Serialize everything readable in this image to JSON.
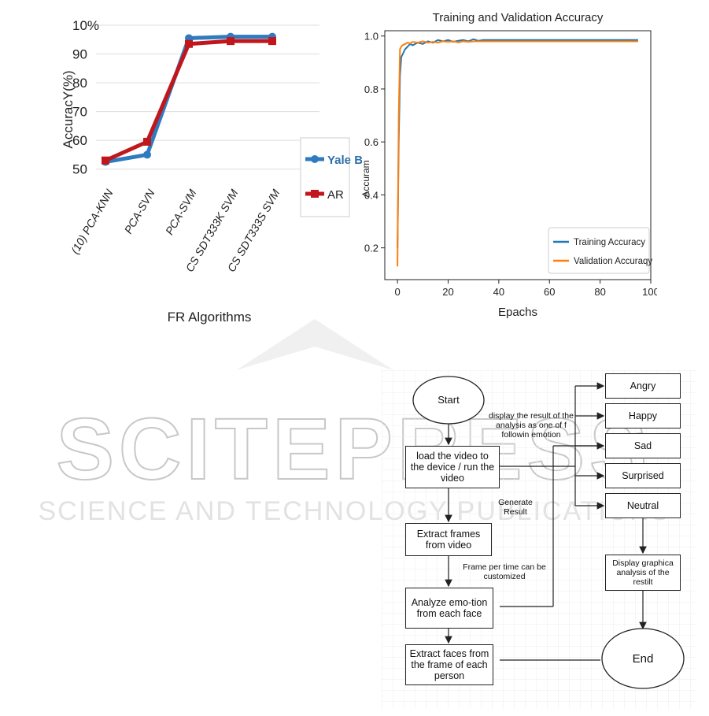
{
  "watermark": {
    "logo_text": "SCITEPRESS",
    "sub_text": "SCIENCE AND TECHNOLOGY PUBLICATIONS"
  },
  "chart_data": [
    {
      "type": "line",
      "title": "",
      "xlabel": "FR Algorithms",
      "ylabel": "AccuracY(%)",
      "categories": [
        "(10) PCA-KNN",
        "PCA-SVN",
        "PCA-SVM",
        "CS SDT333K SVM",
        "CS SDT333S SVM"
      ],
      "y_ticks": [
        "10%",
        "90",
        "80",
        "70",
        "60",
        "50"
      ],
      "ylim": [
        48,
        100
      ],
      "grid": true,
      "legend": "right",
      "series": [
        {
          "name": "Yale B",
          "color": "#2f7bbf",
          "values": [
            52.5,
            55,
            95.5,
            96,
            96
          ]
        },
        {
          "name": "AR",
          "color": "#c0161c",
          "values": [
            53,
            59.5,
            93.5,
            94.5,
            94.5
          ]
        }
      ]
    },
    {
      "type": "line",
      "title": "Training and Validation Accuracy",
      "xlabel": "Epachs",
      "ylabel": "Accuram",
      "x_ticks": [
        "0",
        "20",
        "40",
        "60",
        "80",
        "100"
      ],
      "y_ticks": [
        "0.2",
        "0.4",
        "0.6",
        "0.8",
        "1.0"
      ],
      "xlim": [
        -5,
        100
      ],
      "ylim": [
        0.08,
        1.02
      ],
      "grid": false,
      "legend": "bottom-right",
      "series": [
        {
          "name": "Training Accuracy",
          "color": "#1f77b4",
          "x": [
            0,
            0.5,
            1,
            1.5,
            2,
            3,
            4,
            5,
            6,
            8,
            10,
            12,
            14,
            16,
            18,
            20,
            22,
            24,
            26,
            28,
            30,
            32,
            34,
            36,
            40,
            50,
            60,
            70,
            80,
            90,
            95
          ],
          "y": [
            0.2,
            0.6,
            0.85,
            0.92,
            0.93,
            0.95,
            0.96,
            0.97,
            0.965,
            0.975,
            0.97,
            0.98,
            0.975,
            0.985,
            0.98,
            0.985,
            0.978,
            0.982,
            0.985,
            0.98,
            0.988,
            0.982,
            0.985,
            0.985,
            0.985,
            0.985,
            0.985,
            0.985,
            0.985,
            0.985,
            0.985
          ]
        },
        {
          "name": "Validation Accuraqy",
          "color": "#ff7f0e",
          "x": [
            0,
            0.5,
            1,
            1.5,
            2,
            3,
            4,
            5,
            6,
            8,
            10,
            12,
            14,
            16,
            18,
            20,
            22,
            24,
            26,
            28,
            30,
            32,
            34,
            36,
            40,
            50,
            60,
            70,
            80,
            90,
            95
          ],
          "y": [
            0.13,
            0.7,
            0.95,
            0.96,
            0.965,
            0.97,
            0.975,
            0.972,
            0.978,
            0.975,
            0.98,
            0.975,
            0.978,
            0.975,
            0.98,
            0.978,
            0.98,
            0.976,
            0.98,
            0.978,
            0.98,
            0.98,
            0.98,
            0.98,
            0.98,
            0.98,
            0.98,
            0.98,
            0.98,
            0.98,
            0.98
          ]
        }
      ]
    }
  ],
  "flowchart": {
    "start": "Start",
    "end": "End",
    "load_video": "load the video to the device / run the video",
    "extract_frames": "Extract frames from video",
    "analyze_emotion": "Analyze emo-tion from each face",
    "extract_faces": "Extract faces from the frame of each person",
    "display_analysis": "Display graphica analysis of the restilt",
    "note_display": "display the result of the analysis as one of f followin emotion",
    "note_generate": "Generate Result",
    "note_frame": "Frame per time can be customized",
    "emotions": [
      "Angry",
      "Happy",
      "Sad",
      "Surprised",
      "Neutral"
    ]
  }
}
